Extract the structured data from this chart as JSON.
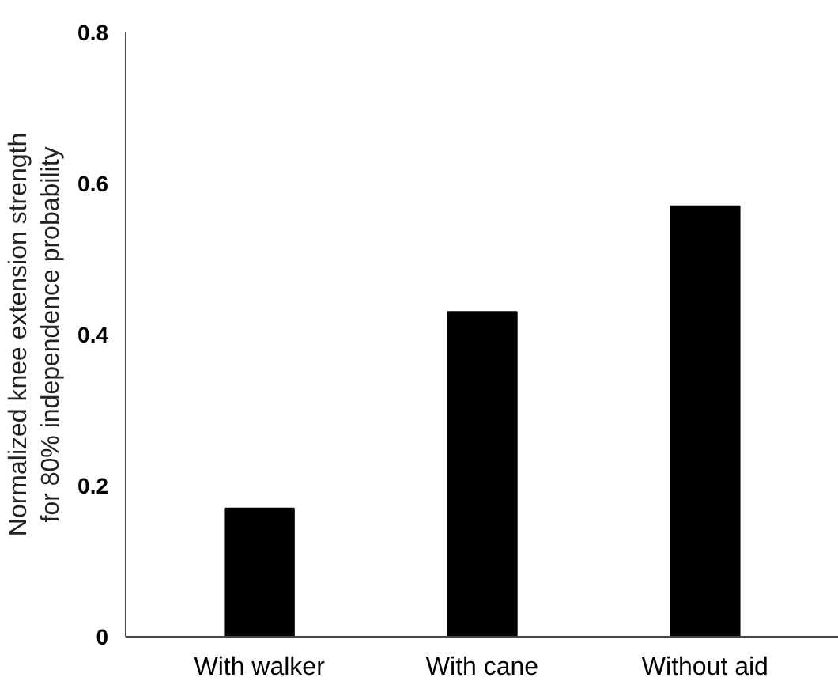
{
  "chart_data": {
    "type": "bar",
    "ylabel": "Normalized knee extension strength\nfor 80% independence probability",
    "categories": [
      "With walker",
      "With cane",
      "Without aid"
    ],
    "values": [
      0.17,
      0.43,
      0.57
    ],
    "color": "#000000",
    "ylim": [
      0,
      0.8
    ],
    "yticks": [
      0,
      {
        "value": 0.2,
        "label": "0.2"
      },
      {
        "value": 0.4,
        "label": "0.4"
      },
      {
        "value": 0.6,
        "label": "0.6"
      },
      {
        "value": 0.8,
        "label": "0.8"
      }
    ],
    "grid": false
  }
}
